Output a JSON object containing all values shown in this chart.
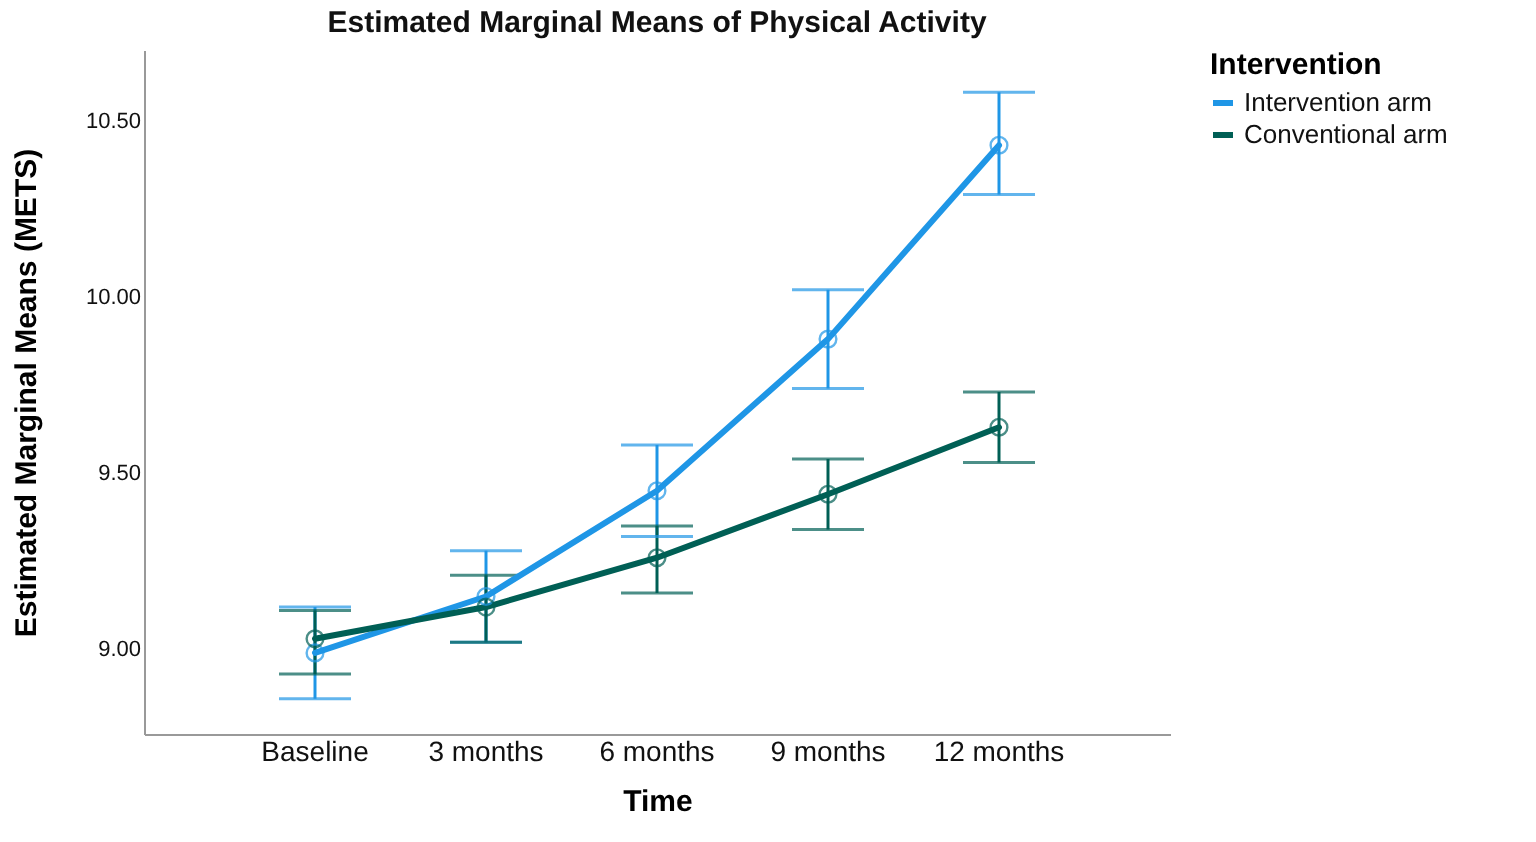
{
  "chart_data": {
    "type": "line",
    "title": "Estimated Marginal Means of Physical Activity",
    "xlabel": "Time",
    "ylabel": "Estimated Marginal Means (METS)",
    "legend_title": "Intervention",
    "categories": [
      "Baseline",
      "3 months",
      "6 months",
      "9 months",
      "12 months"
    ],
    "series": [
      {
        "name": "Intervention arm",
        "color": "#1f96e6",
        "values": [
          8.99,
          9.15,
          9.45,
          9.88,
          10.43
        ],
        "errors": [
          [
            8.86,
            9.12
          ],
          [
            9.02,
            9.28
          ],
          [
            9.32,
            9.58
          ],
          [
            9.74,
            10.02
          ],
          [
            10.29,
            10.58
          ]
        ]
      },
      {
        "name": "Conventional arm",
        "color": "#005f55",
        "values": [
          9.03,
          9.12,
          9.26,
          9.44,
          9.63
        ],
        "errors": [
          [
            8.93,
            9.11
          ],
          [
            9.02,
            9.21
          ],
          [
            9.16,
            9.35
          ],
          [
            9.34,
            9.54
          ],
          [
            9.53,
            9.73
          ]
        ]
      }
    ],
    "ylim": [
      8.76,
      10.7
    ],
    "yticks": [
      {
        "value": 9,
        "label": "9.00"
      },
      {
        "value": 9.5,
        "label": "9.50"
      },
      {
        "value": 10,
        "label": "10.00"
      },
      {
        "value": 10.5,
        "label": "10.50"
      }
    ],
    "grid": false,
    "legend": "top right",
    "marker": "circle",
    "line_style": "solid"
  }
}
